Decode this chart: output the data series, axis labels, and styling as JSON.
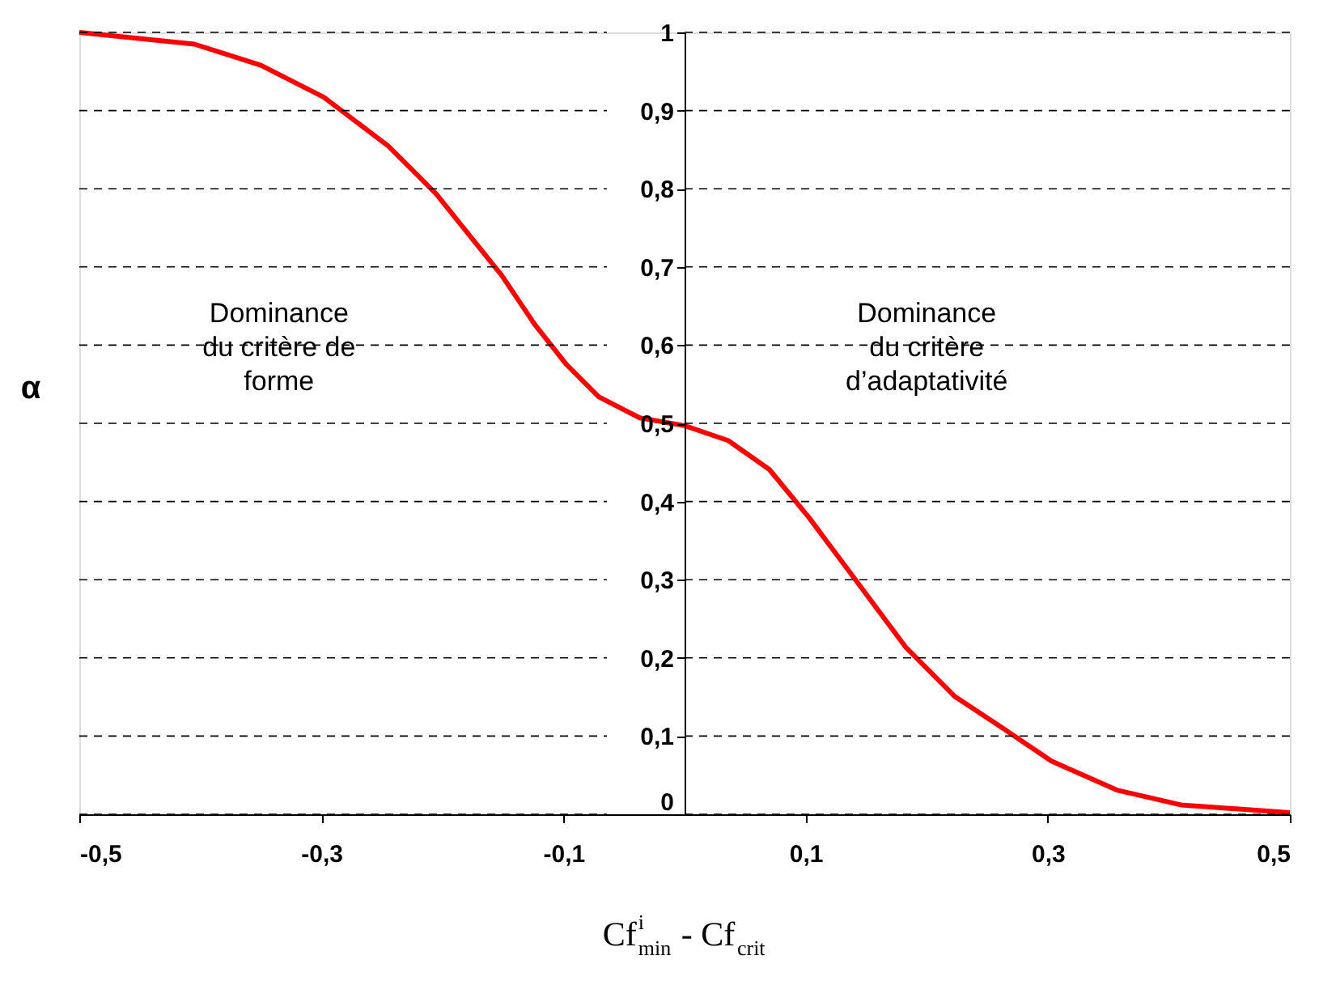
{
  "chart_data": {
    "type": "line",
    "xlabel": "Cf$^{i}$$_{min}$ - Cf$_{crit}$",
    "ylabel": "α",
    "x": [
      -0.5,
      -0.405,
      -0.35,
      -0.298,
      -0.245,
      -0.205,
      -0.151,
      -0.124,
      -0.098,
      -0.071,
      -0.037,
      0,
      0.036,
      0.07,
      0.103,
      0.143,
      0.183,
      0.223,
      0.263,
      0.303,
      0.357,
      0.41,
      0.5
    ],
    "series": [
      {
        "color": "#ff0000",
        "values": [
          1.0,
          0.985,
          0.958,
          0.917,
          0.855,
          0.793,
          0.689,
          0.627,
          0.576,
          0.534,
          0.507,
          0.497,
          0.478,
          0.441,
          0.379,
          0.296,
          0.213,
          0.151,
          0.11,
          0.068,
          0.031,
          0.012,
          0.002
        ]
      }
    ],
    "xlim": [
      -0.5,
      0.5
    ],
    "ylim": [
      0,
      1
    ],
    "xticks": [
      {
        "value": -0.5,
        "label": "-0,5"
      },
      {
        "value": -0.3,
        "label": "-0,3"
      },
      {
        "value": -0.1,
        "label": "-0,1"
      },
      {
        "value": 0.1,
        "label": "0,1"
      },
      {
        "value": 0.3,
        "label": "0,3"
      },
      {
        "value": 0.5,
        "label": "0,5"
      }
    ],
    "yticks": [
      0,
      {
        "value": 0.1,
        "label": "0,1"
      },
      {
        "value": 0.2,
        "label": "0,2"
      },
      {
        "value": 0.3,
        "label": "0,3"
      },
      {
        "value": 0.4,
        "label": "0,4"
      },
      {
        "value": 0.5,
        "label": "0,5"
      },
      {
        "value": 0.6,
        "label": "0,6"
      },
      {
        "value": 0.7,
        "label": "0,7"
      },
      {
        "value": 0.8,
        "label": "0,8"
      },
      {
        "value": 0.9,
        "label": "0,9"
      },
      1
    ],
    "annotations": [
      "Dominance\ndu critère de\nforme",
      "Dominance\ndu critère\nd’adaptativité"
    ],
    "grid": "y",
    "marker": "none",
    "line_style": "solid"
  }
}
